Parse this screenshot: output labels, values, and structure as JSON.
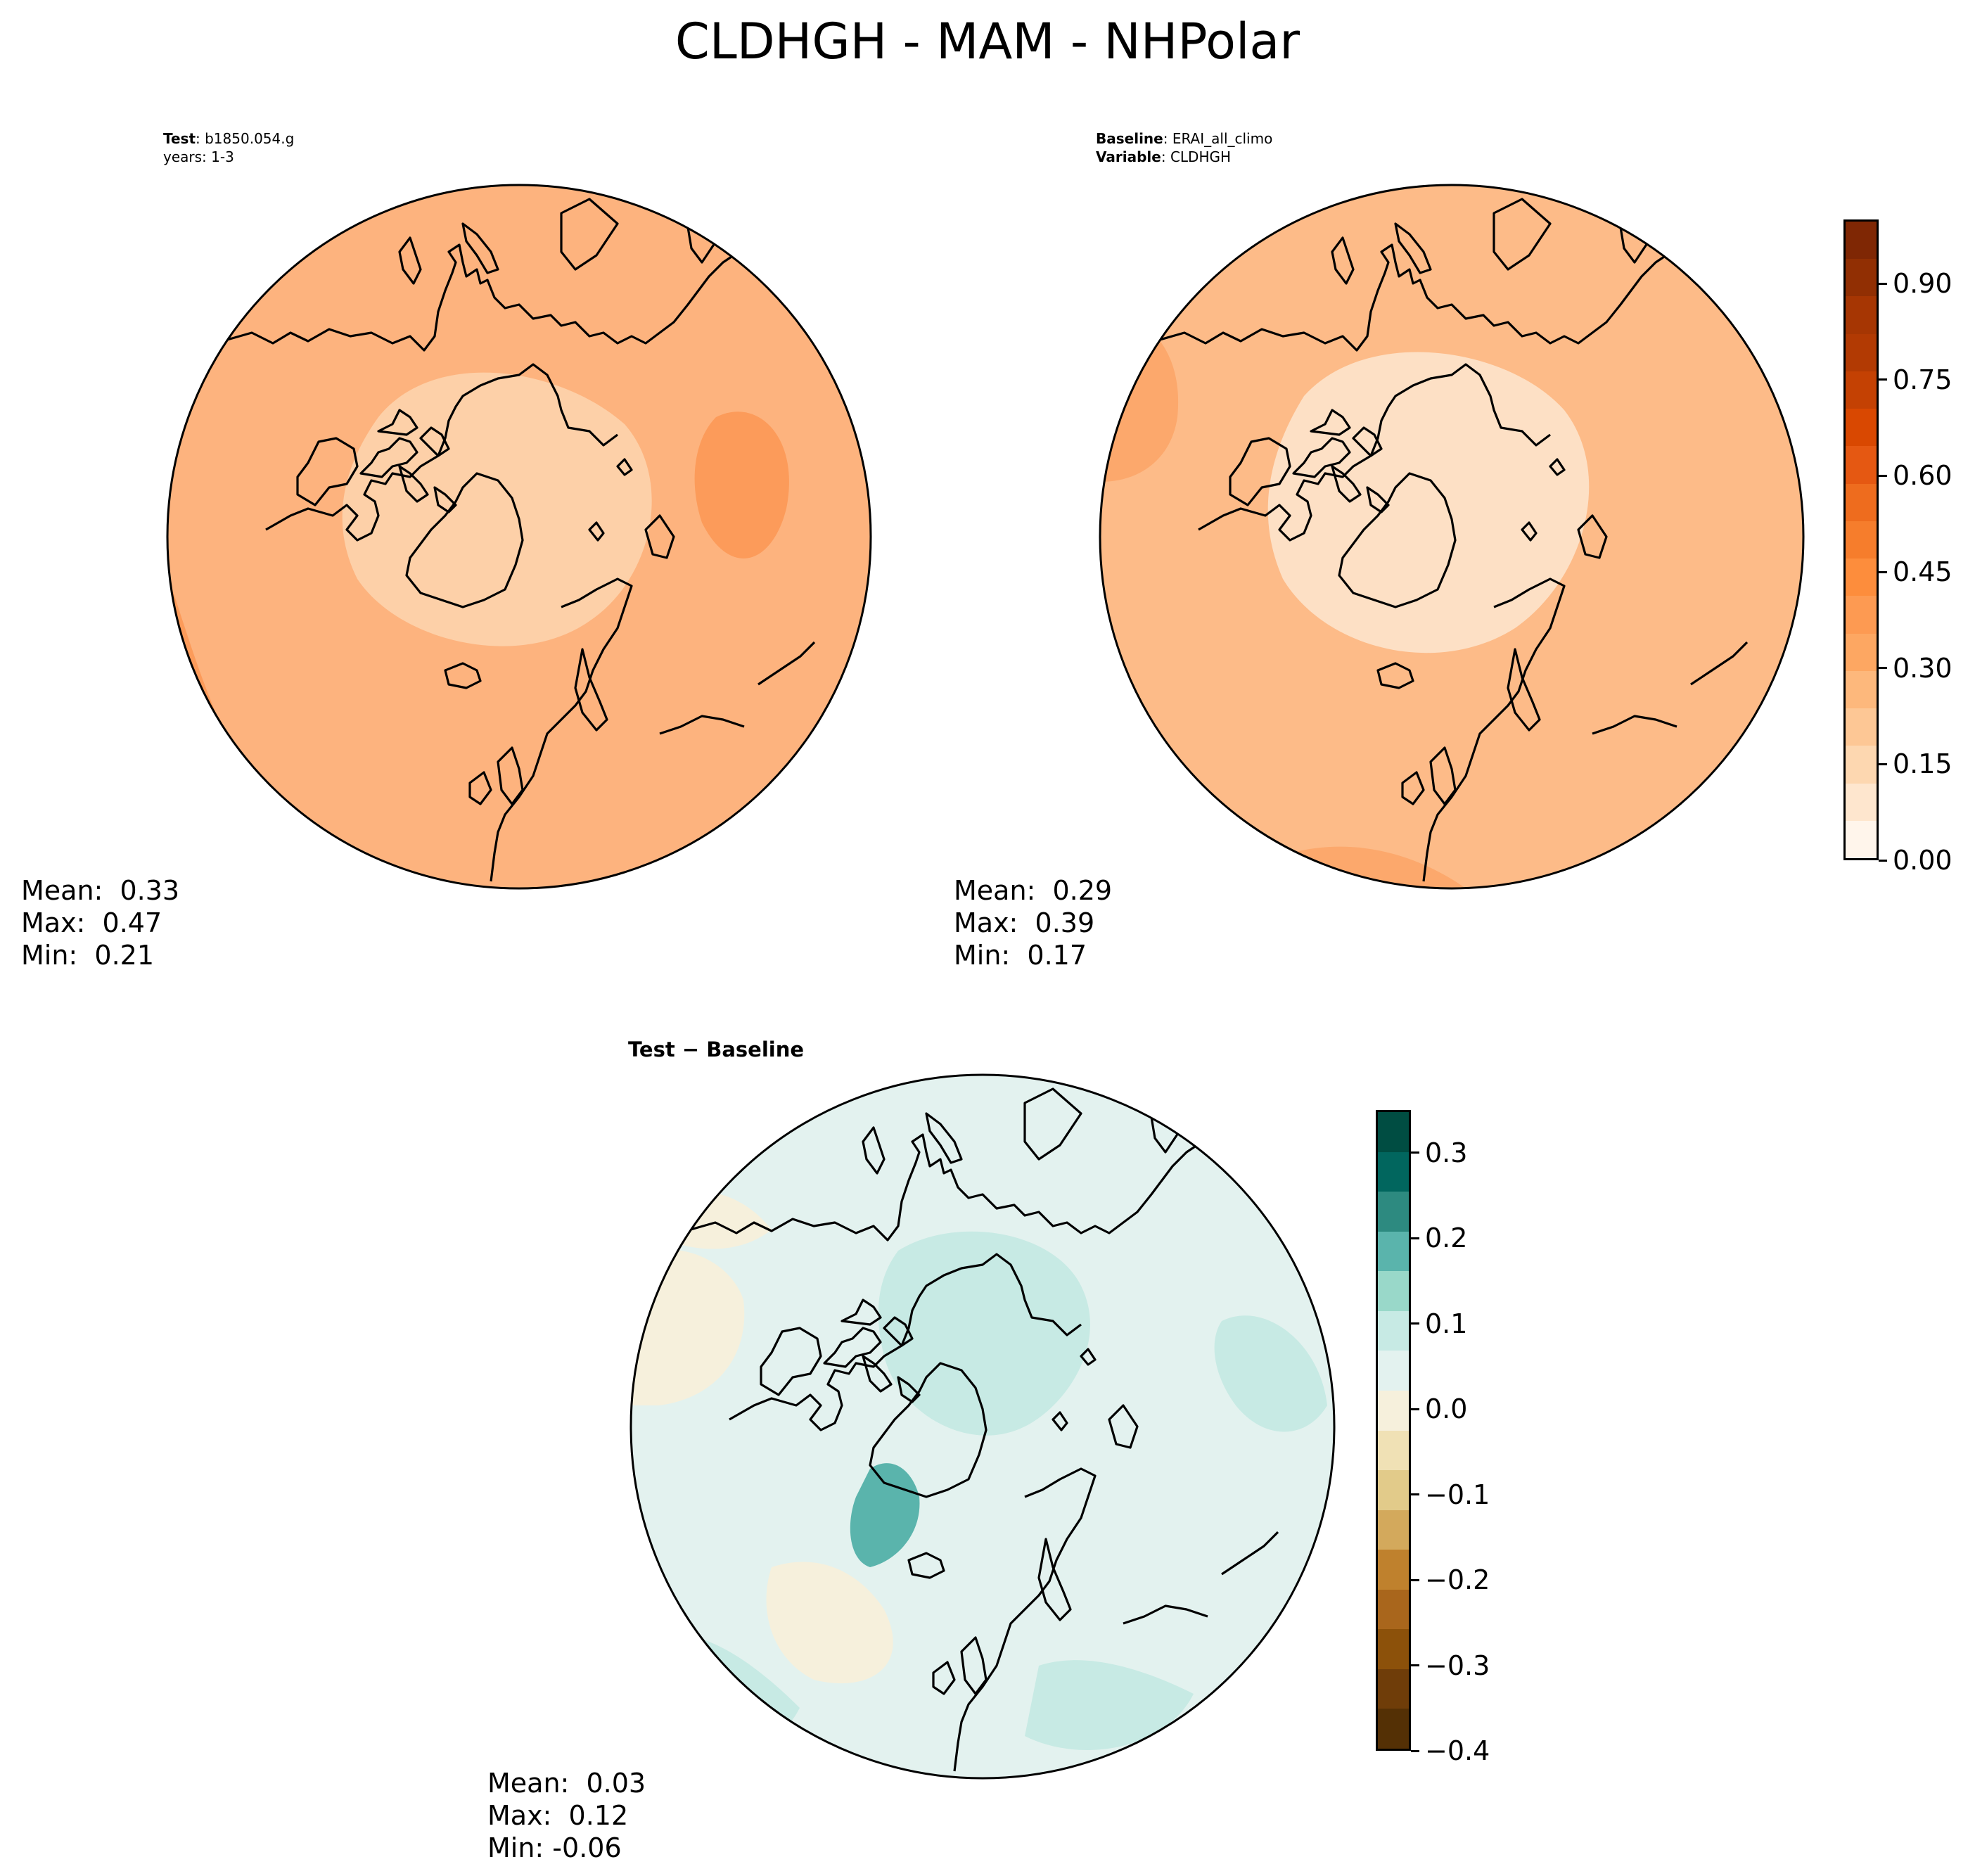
{
  "figure": {
    "title": "CLDHGH - MAM - NHPolar"
  },
  "test_panel": {
    "label_key": "Test",
    "label_value": ": b1850.054.g",
    "years": "years: 1-3",
    "mean": "Mean:  0.33",
    "max": "Max:  0.47",
    "min": "Min:  0.21"
  },
  "baseline_panel": {
    "label_key": "Baseline",
    "label_value": ": ERAI_all_climo",
    "variable_key": "Variable",
    "variable_value": ": CLDHGH",
    "mean": "Mean:  0.29",
    "max": "Max:  0.39",
    "min": "Min:  0.17"
  },
  "diff_panel": {
    "title": "Test − Baseline",
    "mean": "Mean:  0.03",
    "max": "Max:  0.12",
    "min": "Min: -0.06"
  },
  "colorbar_main": {
    "ticks": [
      "0.00",
      "0.15",
      "0.30",
      "0.45",
      "0.60",
      "0.75",
      "0.90"
    ],
    "range": [
      0.0,
      1.0
    ],
    "colors": [
      "#fff5eb",
      "#fee6ce",
      "#fdd7b0",
      "#fdc795",
      "#fdb87c",
      "#fda762",
      "#fd9a52",
      "#fd8d3c",
      "#f67d2c",
      "#ee6c1e",
      "#e55812",
      "#d94801",
      "#c44103",
      "#b23a03",
      "#a63603",
      "#912f03",
      "#7f2704"
    ]
  },
  "colorbar_diff": {
    "ticks": [
      "−0.4",
      "−0.3",
      "−0.2",
      "−0.1",
      "0.0",
      "0.1",
      "0.2",
      "0.3"
    ],
    "range": [
      -0.4,
      0.35
    ],
    "colors": [
      "#543005",
      "#6f3d09",
      "#8c510a",
      "#a9661c",
      "#bf812d",
      "#d3a95c",
      "#e2cb8a",
      "#f0e1b5",
      "#f6f0dc",
      "#e3f2ef",
      "#c7eae4",
      "#99d8c9",
      "#5ab4ac",
      "#2d8a80",
      "#01665e",
      "#004d42"
    ]
  },
  "map_colors": {
    "test_base": "#fdb37e",
    "test_light": "#fdd0a8",
    "test_dark": "#fc9b5a",
    "base_base": "#fdbb88",
    "base_light": "#fde0c5",
    "base_dark": "#fca86c",
    "diff_base": "#e3f2ef",
    "diff_teal": "#c7eae4",
    "diff_tan": "#f6f0dc",
    "diff_dark": "#5ab4ac"
  }
}
